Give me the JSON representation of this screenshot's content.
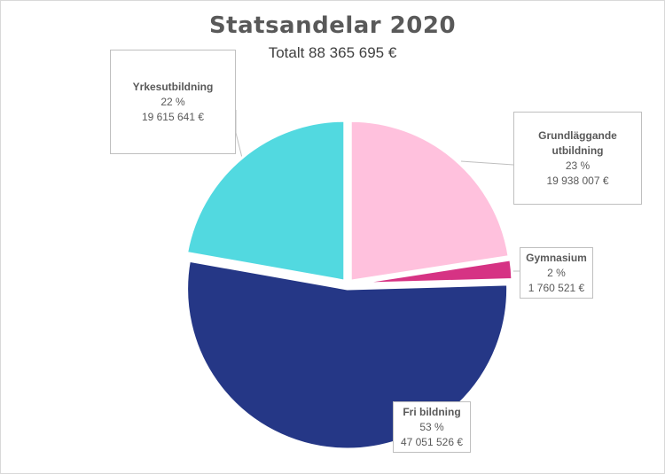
{
  "chart_data": {
    "type": "pie",
    "title": "Statsandelar 2020",
    "subtitle": "Totalt 88 365 695 €",
    "slices": [
      {
        "name": "Grundläggande utbildning",
        "name_line1": "Grundläggande",
        "name_line2": "utbildning",
        "value": 19938007,
        "percent_label": "23 %",
        "value_label": "19 938 007 €",
        "color": "#ffc1dd"
      },
      {
        "name": "Gymnasium",
        "value": 1760521,
        "percent_label": "2 %",
        "value_label": "1 760 521 €",
        "color": "#d63384"
      },
      {
        "name": "Fri bildning",
        "value": 47051526,
        "percent_label": "53 %",
        "value_label": "47 051 526 €",
        "color": "#253786"
      },
      {
        "name": "Yrkesutbildning",
        "value": 19615641,
        "percent_label": "22 %",
        "value_label": "19 615 641 €",
        "color": "#52d9e0"
      }
    ],
    "legend": "none",
    "data_labels": "callouts"
  }
}
